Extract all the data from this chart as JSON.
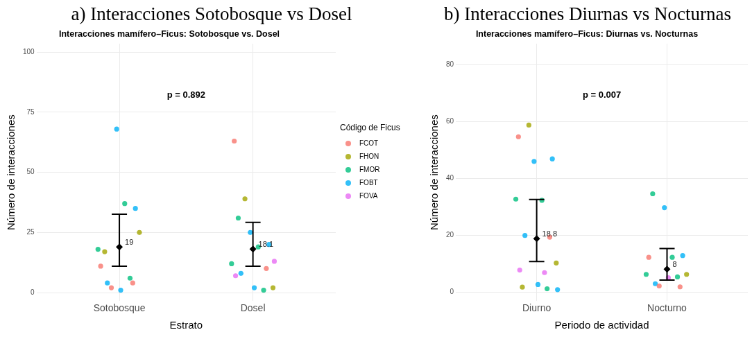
{
  "chart_data": [
    {
      "type": "scatter",
      "title": "a) Interacciones Sotobosque vs Dosel",
      "subtitle": "Interacciones mamífero–Ficus: Sotobosque vs. Dosel",
      "xlabel": "Estrato",
      "ylabel": "Número de interacciones",
      "legend_title": "Código de Ficus",
      "legend": "right",
      "grid": true,
      "marker": "circle",
      "categories": [
        "Sotobosque",
        "Dosel"
      ],
      "ylim": [
        -3.5,
        103.5
      ],
      "yticks": [
        0,
        25,
        50,
        75,
        100
      ],
      "annotations": [
        "p = 0.892"
      ],
      "series": [
        {
          "name": "FCOT",
          "color": "#f8766d",
          "x": [
            "Sotobosque",
            "Sotobosque",
            "Sotobosque",
            "Dosel",
            "Dosel"
          ],
          "values": [
            11,
            4,
            2,
            63,
            10
          ]
        },
        {
          "name": "FHON",
          "color": "#a3a500",
          "x": [
            "Sotobosque",
            "Sotobosque",
            "Dosel",
            "Dosel"
          ],
          "values": [
            25,
            17,
            39,
            2
          ]
        },
        {
          "name": "FMOR",
          "color": "#00bf7d",
          "x": [
            "Sotobosque",
            "Sotobosque",
            "Sotobosque",
            "Dosel",
            "Dosel",
            "Dosel",
            "Dosel"
          ],
          "values": [
            37,
            18,
            6,
            31,
            19,
            12,
            1
          ]
        },
        {
          "name": "FOBT",
          "color": "#00b0f6",
          "x": [
            "Sotobosque",
            "Sotobosque",
            "Sotobosque",
            "Sotobosque",
            "Dosel",
            "Dosel",
            "Dosel",
            "Dosel"
          ],
          "values": [
            68,
            35,
            4,
            1,
            25,
            20,
            8,
            2
          ]
        },
        {
          "name": "FOVA",
          "color": "#e76bf3",
          "x": [
            "Dosel",
            "Dosel"
          ],
          "values": [
            13,
            7
          ]
        },
        {
          "color": "#000000",
          "marker": "diamond",
          "x": [
            "Sotobosque",
            "Dosel"
          ],
          "values": [
            19,
            18.1
          ],
          "errors": [
            [
              11,
              32.6
            ],
            [
              11,
              29.2
            ]
          ],
          "value_labels": [
            "19",
            "18.1"
          ]
        }
      ]
    },
    {
      "type": "scatter",
      "title": "b) Interacciones Diurnas vs Nocturnas",
      "subtitle": "Interacciones mamífero–Ficus: Diurnas vs. Nocturnas",
      "xlabel": "Periodo de actividad",
      "ylabel": "Número de interacciones",
      "legend": false,
      "grid": true,
      "marker": "circle",
      "categories": [
        "Diurno",
        "Nocturno"
      ],
      "ylim": [
        -3.2,
        87.5
      ],
      "yticks": [
        0,
        20,
        40,
        60,
        80
      ],
      "annotations": [
        "p = 0.007"
      ],
      "series": [
        {
          "color": "#f8766d",
          "x": [
            "Diurno",
            "Diurno",
            "Nocturno",
            "Nocturno",
            "Nocturno"
          ],
          "values": [
            54.7,
            19.3,
            12.2,
            1.8,
            2.1
          ]
        },
        {
          "color": "#a3a500",
          "x": [
            "Diurno",
            "Diurno",
            "Diurno",
            "Nocturno"
          ],
          "values": [
            58.8,
            10.2,
            1.7,
            6.2
          ]
        },
        {
          "color": "#00bf7d",
          "x": [
            "Diurno",
            "Diurno",
            "Diurno",
            "Nocturno",
            "Nocturno",
            "Nocturno",
            "Nocturno"
          ],
          "values": [
            32.3,
            32.7,
            1.1,
            34.6,
            12.2,
            6.2,
            5.3
          ]
        },
        {
          "color": "#00b0f6",
          "x": [
            "Diurno",
            "Diurno",
            "Diurno",
            "Diurno",
            "Diurno",
            "Nocturno",
            "Nocturno",
            "Nocturno"
          ],
          "values": [
            46,
            46.9,
            19.9,
            2.6,
            0.8,
            29.7,
            12.8,
            2.9
          ]
        },
        {
          "color": "#e76bf3",
          "x": [
            "Diurno",
            "Diurno",
            "Nocturno"
          ],
          "values": [
            7.7,
            6.8,
            5
          ]
        },
        {
          "color": "#000000",
          "marker": "diamond",
          "x": [
            "Diurno",
            "Nocturno"
          ],
          "values": [
            18.8,
            8
          ],
          "errors": [
            [
              10.7,
              32.6
            ],
            [
              4.2,
              15.3
            ]
          ],
          "value_labels": [
            "18.8",
            "8"
          ]
        }
      ]
    }
  ]
}
